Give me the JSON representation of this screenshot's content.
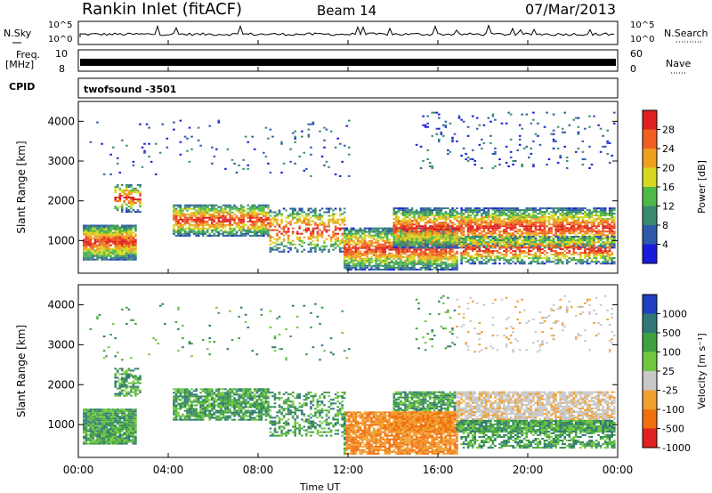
{
  "header": {
    "station": "Rankin Inlet (fitACF)",
    "beam": "Beam 14",
    "date": "07/Mar/2013"
  },
  "summary_panels": {
    "nsky_label": "N.Sky",
    "nsky_ticks": [
      "10^5",
      "10^0"
    ],
    "nsearch_label": "N.Search",
    "nsearch_ticks": [
      "10^5",
      "10^0"
    ],
    "freq_label_1": "Freq.",
    "freq_label_2": "[MHz]",
    "freq_ticks": [
      "10",
      "8"
    ],
    "nave_label": "Nave",
    "nave_ticks": [
      "60",
      "0"
    ],
    "cpid_label": "CPID",
    "cpid_value": "twofsound -3501"
  },
  "chart_data": [
    {
      "type": "heatmap",
      "quantity": "Power",
      "ylabel": "Slant Range [km]",
      "ylim": [
        180,
        4500
      ],
      "yticks": [
        "1000",
        "2000",
        "3000",
        "4000"
      ],
      "xlim": [
        "00:00",
        "24:00"
      ],
      "colorbar": {
        "label": "Power [dB]",
        "ticks": [
          "4",
          "8",
          "12",
          "16",
          "20",
          "24",
          "28"
        ],
        "range": [
          0,
          32
        ],
        "colors": [
          "#1a1adc",
          "#2e5aa8",
          "#3a8a6e",
          "#4fb84a",
          "#d8d820",
          "#f0a020",
          "#f06020",
          "#e02020"
        ]
      }
    },
    {
      "type": "heatmap",
      "quantity": "Velocity",
      "ylabel": "Slant Range [km]",
      "ylim": [
        180,
        4500
      ],
      "yticks": [
        "1000",
        "2000",
        "3000",
        "4000"
      ],
      "xlim": [
        "00:00",
        "24:00"
      ],
      "colorbar": {
        "label": "Velocity [m s⁻¹]",
        "ticks": [
          "1000",
          "500",
          "100",
          "25",
          "-25",
          "-100",
          "-500",
          "-1000"
        ],
        "colors": [
          "#2040c0",
          "#307878",
          "#40a040",
          "#70c840",
          "#c8c8c8",
          "#f0a030",
          "#f07010",
          "#e02020"
        ]
      }
    }
  ],
  "xaxis": {
    "label": "Time UT",
    "ticks": [
      "00:00",
      "04:00",
      "08:00",
      "12:00",
      "16:00",
      "20:00",
      "00:00"
    ]
  }
}
